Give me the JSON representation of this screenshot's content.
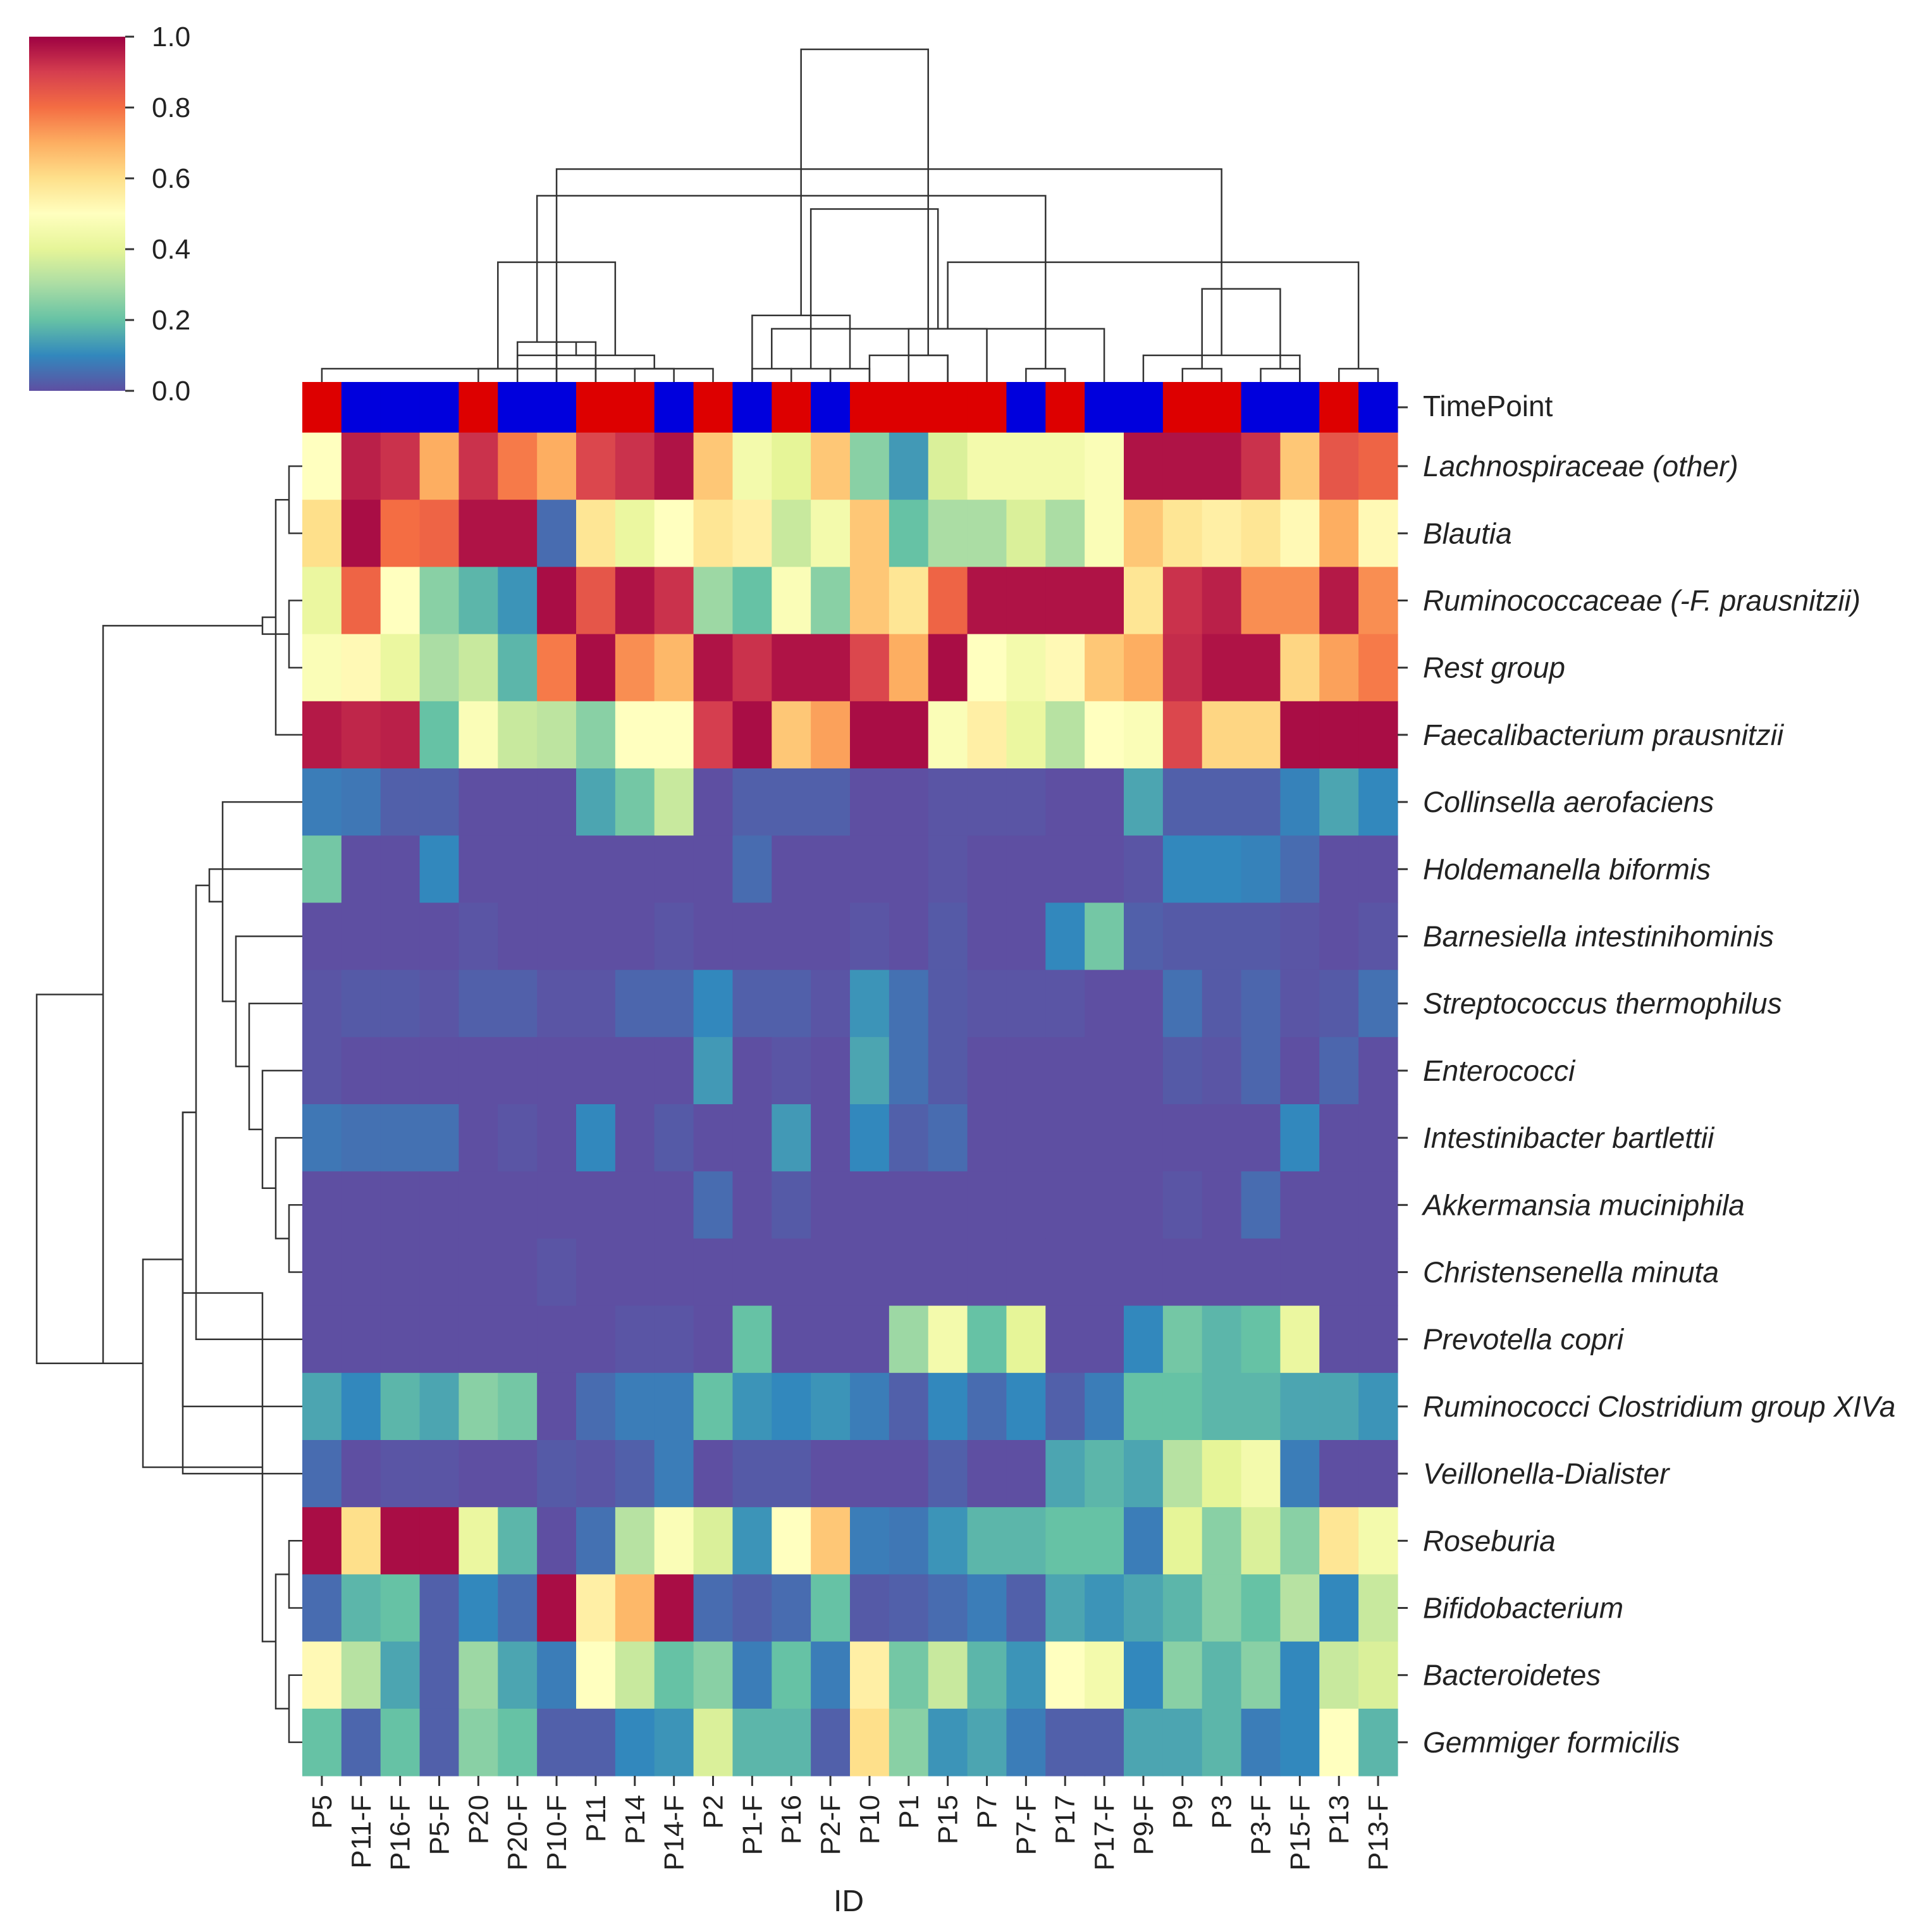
{
  "chart_data": {
    "type": "heatmap",
    "xlabel": "ID",
    "annotation_row_label": "TimePoint",
    "timepoint_colors": {
      "red": "#dd0000",
      "blue": "#0000dd"
    },
    "columns": [
      "P5",
      "P11-F",
      "P16-F",
      "P5-F",
      "P20",
      "P20-F",
      "P10-F",
      "P11",
      "P14",
      "P14-F",
      "P2",
      "P1-F",
      "P16",
      "P2-F",
      "P10",
      "P1",
      "P15",
      "P7",
      "P7-F",
      "P17",
      "P17-F",
      "P9-F",
      "P9",
      "P3",
      "P3-F",
      "P15-F",
      "P13",
      "P13-F"
    ],
    "timepoint": [
      "red",
      "blue",
      "blue",
      "blue",
      "red",
      "blue",
      "blue",
      "red",
      "red",
      "blue",
      "red",
      "blue",
      "red",
      "blue",
      "red",
      "red",
      "red",
      "red",
      "blue",
      "red",
      "blue",
      "blue",
      "red",
      "red",
      "blue",
      "blue",
      "red",
      "blue"
    ],
    "rows": [
      "Lachnospiraceae (other)",
      "Blautia",
      "Ruminococcaceae (-F. prausnitzii)",
      "Rest group",
      "Faecalibacterium prausnitzii",
      "Collinsella aerofaciens",
      "Holdemanella biformis",
      "Barnesiella intestinihominis",
      "Streptococcus thermophilus",
      "Enterococci",
      "Intestinibacter bartlettii",
      "Akkermansia muciniphila",
      "Christensenella minuta",
      "Prevotella copri",
      "Ruminococci Clostridium group XIVa",
      "Veillonella-Dialister",
      "Roseburia",
      "Bifidobacterium",
      "Bacteroidetes",
      "Gemmiger formicilis"
    ],
    "values": [
      [
        0.5,
        0.95,
        0.92,
        0.7,
        0.92,
        0.78,
        0.7,
        0.88,
        0.92,
        0.97,
        0.65,
        0.45,
        0.4,
        0.65,
        0.25,
        0.13,
        0.38,
        0.45,
        0.45,
        0.45,
        0.48,
        0.97,
        0.97,
        0.97,
        0.92,
        0.65,
        0.85,
        0.82
      ],
      [
        0.6,
        0.98,
        0.8,
        0.82,
        0.97,
        0.97,
        0.05,
        0.58,
        0.42,
        0.5,
        0.58,
        0.55,
        0.35,
        0.45,
        0.65,
        0.2,
        0.3,
        0.3,
        0.38,
        0.3,
        0.48,
        0.65,
        0.58,
        0.55,
        0.58,
        0.52,
        0.7,
        0.52
      ],
      [
        0.42,
        0.82,
        0.5,
        0.25,
        0.18,
        0.12,
        0.98,
        0.85,
        0.97,
        0.92,
        0.28,
        0.2,
        0.48,
        0.25,
        0.65,
        0.58,
        0.82,
        0.97,
        0.97,
        0.97,
        0.97,
        0.58,
        0.92,
        0.95,
        0.75,
        0.75,
        0.96,
        0.75
      ],
      [
        0.48,
        0.52,
        0.42,
        0.3,
        0.35,
        0.18,
        0.78,
        0.98,
        0.75,
        0.68,
        0.97,
        0.92,
        0.97,
        0.97,
        0.88,
        0.7,
        0.98,
        0.5,
        0.45,
        0.52,
        0.65,
        0.7,
        0.93,
        0.97,
        0.97,
        0.62,
        0.72,
        0.78
      ],
      [
        0.96,
        0.94,
        0.95,
        0.2,
        0.48,
        0.35,
        0.33,
        0.25,
        0.5,
        0.5,
        0.9,
        0.98,
        0.65,
        0.72,
        0.98,
        0.98,
        0.48,
        0.55,
        0.42,
        0.32,
        0.5,
        0.48,
        0.88,
        0.62,
        0.62,
        0.98,
        0.98,
        0.98
      ],
      [
        0.08,
        0.07,
        0.03,
        0.03,
        0.0,
        0.0,
        0.0,
        0.15,
        0.22,
        0.35,
        0.0,
        0.03,
        0.03,
        0.03,
        0.0,
        0.0,
        0.01,
        0.01,
        0.01,
        0.0,
        0.0,
        0.15,
        0.03,
        0.03,
        0.03,
        0.09,
        0.15,
        0.1
      ],
      [
        0.22,
        0.0,
        0.0,
        0.1,
        0.0,
        0.0,
        0.0,
        0.0,
        0.0,
        0.0,
        0.0,
        0.05,
        0.0,
        0.0,
        0.0,
        0.0,
        0.01,
        0.0,
        0.0,
        0.0,
        0.0,
        0.01,
        0.1,
        0.1,
        0.09,
        0.05,
        0.0,
        0.0
      ],
      [
        0.0,
        0.0,
        0.0,
        0.0,
        0.01,
        0.0,
        0.0,
        0.0,
        0.0,
        0.01,
        0.0,
        0.0,
        0.0,
        0.0,
        0.01,
        0.0,
        0.02,
        0.0,
        0.0,
        0.1,
        0.22,
        0.03,
        0.02,
        0.02,
        0.02,
        0.01,
        0.0,
        0.01
      ],
      [
        0.01,
        0.02,
        0.02,
        0.01,
        0.03,
        0.03,
        0.01,
        0.01,
        0.04,
        0.04,
        0.1,
        0.03,
        0.03,
        0.01,
        0.12,
        0.06,
        0.02,
        0.01,
        0.01,
        0.01,
        0.0,
        0.0,
        0.06,
        0.02,
        0.04,
        0.01,
        0.02,
        0.06
      ],
      [
        0.01,
        0.0,
        0.0,
        0.0,
        0.0,
        0.0,
        0.0,
        0.0,
        0.0,
        0.0,
        0.13,
        0.0,
        0.01,
        0.0,
        0.15,
        0.06,
        0.02,
        0.0,
        0.0,
        0.0,
        0.0,
        0.0,
        0.02,
        0.01,
        0.04,
        0.0,
        0.04,
        0.0
      ],
      [
        0.07,
        0.06,
        0.06,
        0.06,
        0.0,
        0.01,
        0.0,
        0.1,
        0.0,
        0.02,
        0.0,
        0.0,
        0.13,
        0.0,
        0.1,
        0.03,
        0.05,
        0.0,
        0.0,
        0.0,
        0.0,
        0.0,
        0.0,
        0.0,
        0.0,
        0.1,
        0.0,
        0.0
      ],
      [
        0.0,
        0.0,
        0.0,
        0.0,
        0.0,
        0.0,
        0.0,
        0.0,
        0.0,
        0.0,
        0.05,
        0.0,
        0.02,
        0.0,
        0.0,
        0.0,
        0.0,
        0.0,
        0.0,
        0.0,
        0.0,
        0.0,
        0.01,
        0.0,
        0.05,
        0.0,
        0.0,
        0.0
      ],
      [
        0.0,
        0.0,
        0.0,
        0.0,
        0.0,
        0.0,
        0.01,
        0.0,
        0.0,
        0.0,
        0.0,
        0.0,
        0.0,
        0.0,
        0.0,
        0.0,
        0.0,
        0.0,
        0.0,
        0.0,
        0.0,
        0.0,
        0.0,
        0.0,
        0.0,
        0.0,
        0.0,
        0.0
      ],
      [
        0.0,
        0.0,
        0.0,
        0.0,
        0.0,
        0.0,
        0.0,
        0.0,
        0.01,
        0.01,
        0.0,
        0.2,
        0.0,
        0.0,
        0.0,
        0.28,
        0.45,
        0.2,
        0.4,
        0.0,
        0.0,
        0.1,
        0.22,
        0.18,
        0.2,
        0.42,
        0.0,
        0.0
      ],
      [
        0.15,
        0.1,
        0.18,
        0.15,
        0.25,
        0.22,
        0.0,
        0.05,
        0.08,
        0.08,
        0.2,
        0.12,
        0.1,
        0.12,
        0.08,
        0.03,
        0.1,
        0.05,
        0.1,
        0.03,
        0.08,
        0.2,
        0.2,
        0.18,
        0.18,
        0.15,
        0.15,
        0.12
      ],
      [
        0.05,
        0.0,
        0.01,
        0.01,
        0.0,
        0.0,
        0.02,
        0.01,
        0.03,
        0.08,
        0.0,
        0.02,
        0.02,
        0.0,
        0.0,
        0.0,
        0.03,
        0.0,
        0.0,
        0.15,
        0.18,
        0.15,
        0.32,
        0.4,
        0.45,
        0.08,
        0.0,
        0.0
      ],
      [
        0.98,
        0.6,
        0.98,
        0.98,
        0.42,
        0.18,
        0.0,
        0.06,
        0.32,
        0.48,
        0.38,
        0.12,
        0.5,
        0.65,
        0.08,
        0.07,
        0.12,
        0.18,
        0.18,
        0.2,
        0.2,
        0.08,
        0.4,
        0.25,
        0.38,
        0.25,
        0.58,
        0.45
      ],
      [
        0.05,
        0.18,
        0.2,
        0.03,
        0.1,
        0.05,
        0.98,
        0.55,
        0.68,
        0.98,
        0.05,
        0.03,
        0.05,
        0.2,
        0.02,
        0.03,
        0.05,
        0.08,
        0.03,
        0.15,
        0.12,
        0.15,
        0.18,
        0.25,
        0.2,
        0.32,
        0.1,
        0.35
      ],
      [
        0.52,
        0.32,
        0.15,
        0.03,
        0.28,
        0.15,
        0.08,
        0.5,
        0.35,
        0.2,
        0.25,
        0.08,
        0.2,
        0.08,
        0.55,
        0.22,
        0.35,
        0.18,
        0.12,
        0.5,
        0.45,
        0.1,
        0.25,
        0.18,
        0.25,
        0.1,
        0.35,
        0.38
      ],
      [
        0.2,
        0.04,
        0.2,
        0.03,
        0.25,
        0.2,
        0.03,
        0.03,
        0.1,
        0.12,
        0.38,
        0.18,
        0.18,
        0.03,
        0.6,
        0.25,
        0.12,
        0.15,
        0.08,
        0.03,
        0.03,
        0.15,
        0.15,
        0.18,
        0.08,
        0.1,
        0.5,
        0.18
      ]
    ],
    "colorbar": {
      "vmin": 0.0,
      "vmax": 1.0,
      "ticks": [
        "0.0",
        "0.2",
        "0.4",
        "0.6",
        "0.8",
        "1.0"
      ],
      "colormap": "Spectral_r"
    },
    "col_dendrogram": [
      [
        6,
        7,
        3
      ],
      [
        8,
        9,
        1
      ],
      [
        7,
        5,
        2
      ],
      [
        0,
        10,
        1
      ],
      [
        11,
        12,
        1
      ],
      [
        13,
        14,
        1
      ],
      [
        14,
        16,
        2
      ],
      [
        15,
        17,
        4
      ],
      [
        22,
        23,
        1
      ],
      [
        24,
        25,
        1
      ],
      [
        26,
        27,
        1
      ],
      [
        25,
        21,
        2
      ],
      [
        28,
        29,
        2
      ],
      [
        4,
        5,
        1
      ],
      [
        18,
        19,
        1
      ],
      [
        31,
        30,
        3
      ],
      [
        20,
        32,
        4
      ],
      [
        12,
        13,
        1
      ],
      [
        16,
        34,
        2
      ],
      [
        33,
        11,
        5
      ],
      [
        36,
        37,
        7
      ],
      [
        38,
        35,
        9
      ],
      [
        39,
        6,
        16
      ],
      [
        40,
        41,
        9
      ],
      [
        42,
        43,
        14
      ],
      [
        44,
        45,
        13
      ],
      [
        46,
        47,
        25
      ]
    ],
    "row_dendrogram": [
      [
        0,
        1,
        1
      ],
      [
        2,
        3,
        1
      ],
      [
        20,
        4,
        2
      ],
      [
        21,
        22,
        3
      ],
      [
        11,
        12,
        1
      ],
      [
        24,
        10,
        2
      ],
      [
        25,
        9,
        3
      ],
      [
        26,
        8,
        4
      ],
      [
        27,
        7,
        5
      ],
      [
        28,
        5,
        6
      ],
      [
        29,
        6,
        7
      ],
      [
        30,
        13,
        8
      ],
      [
        31,
        14,
        9
      ],
      [
        31,
        15,
        9
      ],
      [
        18,
        19,
        1
      ],
      [
        16,
        17,
        1
      ],
      [
        34,
        35,
        2
      ],
      [
        33,
        36,
        3
      ],
      [
        32,
        37,
        12
      ],
      [
        38,
        23,
        15
      ],
      [
        39,
        38,
        20
      ]
    ]
  }
}
